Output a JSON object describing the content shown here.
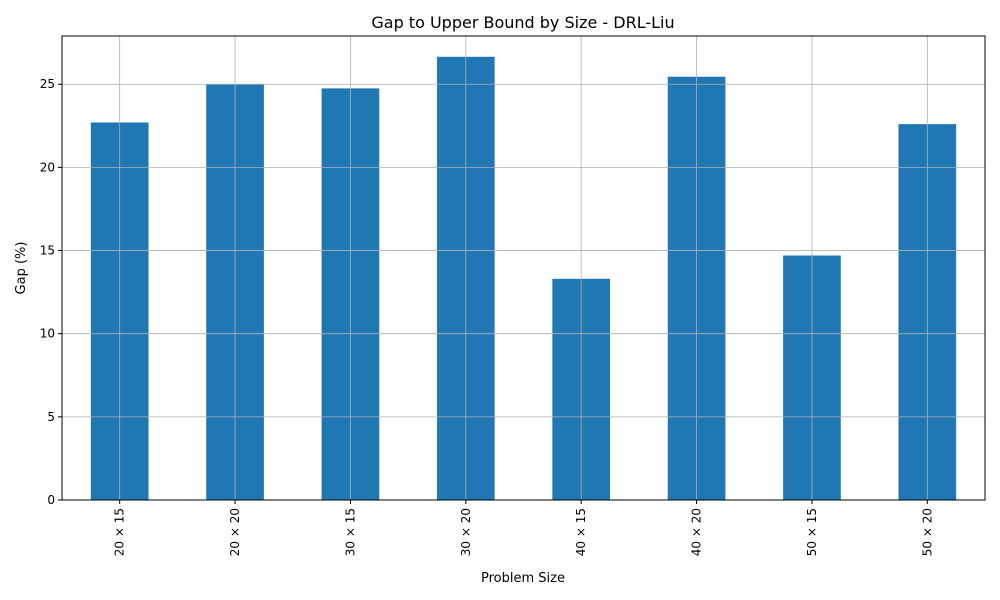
{
  "chart_data": {
    "type": "bar",
    "title": "Gap to Upper Bound by Size - DRL-Liu",
    "xlabel": "Problem Size",
    "ylabel": "Gap (%)",
    "categories": [
      "20 × 15",
      "20 × 20",
      "30 × 15",
      "30 × 20",
      "40 × 15",
      "40 × 20",
      "50 × 15",
      "50 × 20"
    ],
    "values": [
      22.7,
      25.0,
      24.75,
      26.65,
      13.3,
      25.45,
      14.7,
      22.6
    ],
    "ylim": [
      0,
      27.9
    ],
    "yticks": [
      0,
      5,
      10,
      15,
      20,
      25
    ],
    "grid": true,
    "bar_color": "#1f77b4",
    "grid_color": "#b0b0b0"
  }
}
